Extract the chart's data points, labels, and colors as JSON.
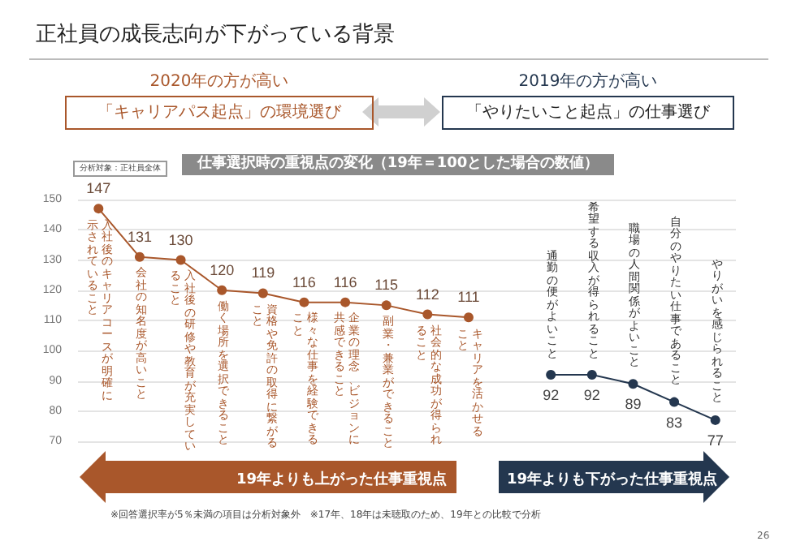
{
  "chart_data": {
    "type": "line",
    "title": "正社員の成長志向が下がっている背景",
    "subtitle": "仕事選択時の重視点の変化（19年＝100とした場合の数値）",
    "annotations": [
      "2020年の方が高い",
      "「キャリアパス起点」の環境選び",
      "2019年の方が高い",
      "「やりたいこと起点」の仕事選び",
      "分析対象：正社員全体",
      "19年よりも上がった仕事重視点",
      "19年よりも下がった仕事重視点",
      "※回答選択率が5％未満の項目は分析対象外　※17年、18年は未聴取のため、19年との比較で分析",
      "26"
    ],
    "categories": [
      "入社後のキャリアコースが明確に示されていること",
      "会社の知名度が高いこと",
      "入社後の研修や教育が充実していること",
      "働く場所を選択できること",
      "資格や免許の取得に繋がること",
      "様々な仕事を経験できること",
      "企業の理念、ビジョンに共感できること",
      "副業・兼業ができること",
      "社会的な成功が得られること",
      "キャリアを活かせること",
      null,
      "通勤の便がよいこと",
      "希望する収入が得られること",
      "職場の人間関係がよいこと",
      "自分のやりたい仕事であること",
      "やりがいを感じられること"
    ],
    "series": [
      {
        "color": "#a9572b",
        "values": [
          147,
          131,
          130,
          120,
          119,
          116,
          116,
          115,
          112,
          111,
          null,
          null,
          null,
          null,
          null,
          null
        ]
      },
      {
        "color": "#24374f",
        "values": [
          null,
          null,
          null,
          null,
          null,
          null,
          null,
          null,
          null,
          null,
          null,
          92,
          92,
          89,
          83,
          77
        ]
      }
    ],
    "ylim": [
      70,
      150
    ],
    "yticks": [
      70,
      80,
      90,
      100,
      110,
      120,
      130,
      140,
      150
    ],
    "grid": "y",
    "marker": "circle",
    "line_style": "solid",
    "data_labels": true
  }
}
